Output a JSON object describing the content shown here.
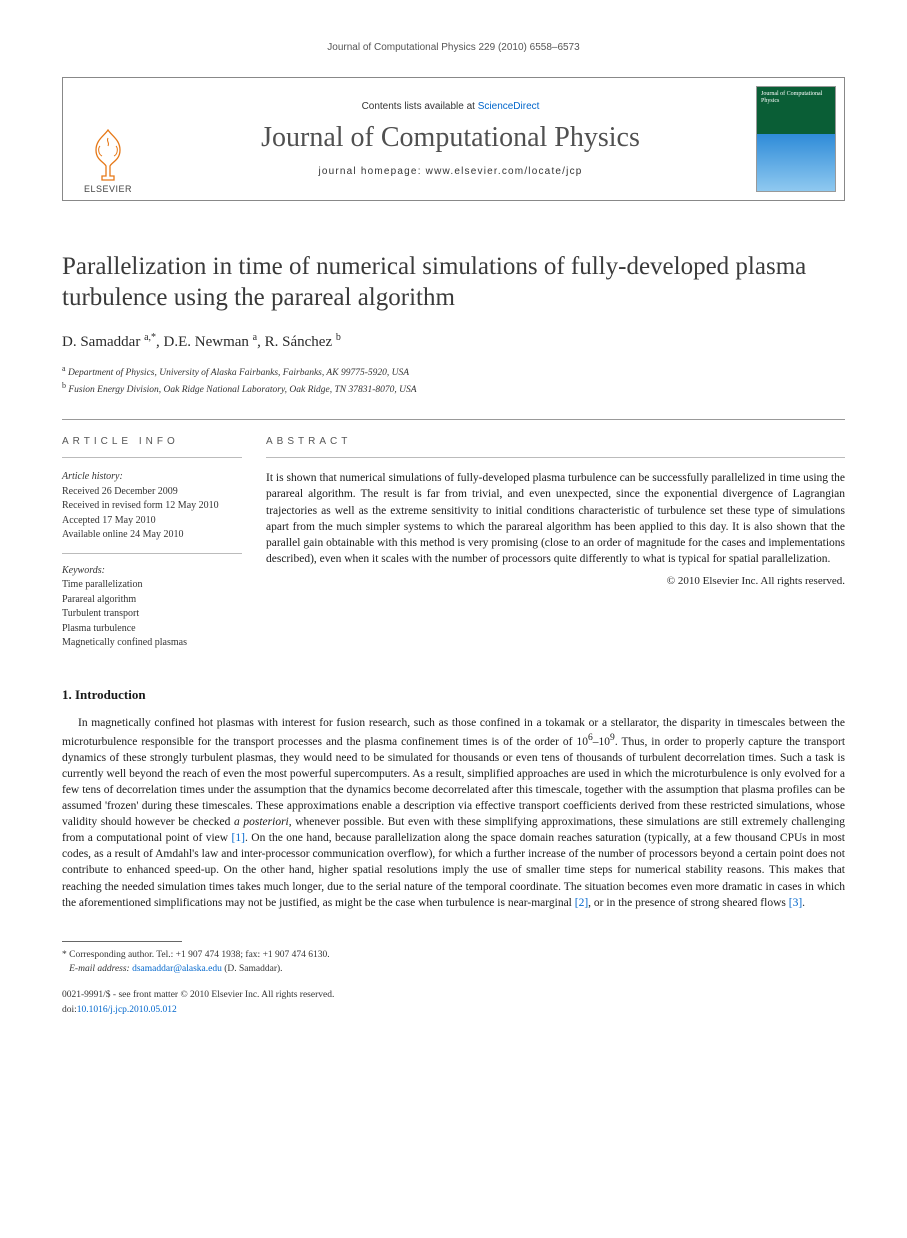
{
  "running_header": "Journal of Computational Physics 229 (2010) 6558–6573",
  "masthead": {
    "elsevier_label": "ELSEVIER",
    "contents_prefix": "Contents lists available at ",
    "contents_link": "ScienceDirect",
    "journal_name": "Journal of Computational Physics",
    "homepage_prefix": "journal homepage: ",
    "homepage_url": "www.elsevier.com/locate/jcp",
    "cover_title": "Journal of Computational Physics"
  },
  "article": {
    "title": "Parallelization in time of numerical simulations of fully-developed plasma turbulence using the parareal algorithm",
    "authors_html": "D. Samaddar <sup>a,*</sup>, D.E. Newman <sup>a</sup>, R. Sánchez <sup>b</sup>",
    "affiliations": [
      {
        "sup": "a",
        "text": "Department of Physics, University of Alaska Fairbanks, Fairbanks, AK 99775-5920, USA"
      },
      {
        "sup": "b",
        "text": "Fusion Energy Division, Oak Ridge National Laboratory, Oak Ridge, TN 37831-8070, USA"
      }
    ]
  },
  "info": {
    "label": "ARTICLE INFO",
    "history_head": "Article history:",
    "history": [
      "Received 26 December 2009",
      "Received in revised form 12 May 2010",
      "Accepted 17 May 2010",
      "Available online 24 May 2010"
    ],
    "keywords_head": "Keywords:",
    "keywords": [
      "Time parallelization",
      "Parareal algorithm",
      "Turbulent transport",
      "Plasma turbulence",
      "Magnetically confined plasmas"
    ]
  },
  "abstract": {
    "label": "ABSTRACT",
    "text": "It is shown that numerical simulations of fully-developed plasma turbulence can be successfully parallelized in time using the parareal algorithm. The result is far from trivial, and even unexpected, since the exponential divergence of Lagrangian trajectories as well as the extreme sensitivity to initial conditions characteristic of turbulence set these type of simulations apart from the much simpler systems to which the parareal algorithm has been applied to this day. It is also shown that the parallel gain obtainable with this method is very promising (close to an order of magnitude for the cases and implementations described), even when it scales with the number of processors quite differently to what is typical for spatial parallelization.",
    "copyright": "© 2010 Elsevier Inc. All rights reserved."
  },
  "body": {
    "section_title": "1. Introduction",
    "para1_a": "In magnetically confined hot plasmas with interest for fusion research, such as those confined in a tokamak or a stellarator, the disparity in timescales between the microturbulence responsible for the transport processes and the plasma confinement times is of the order of 10",
    "para1_exp1": "6",
    "para1_b": "–10",
    "para1_exp2": "9",
    "para1_c": ". Thus, in order to properly capture the transport dynamics of these strongly turbulent plasmas, they would need to be simulated for thousands or even tens of thousands of turbulent decorrelation times. Such a task is currently well beyond the reach of even the most powerful supercomputers. As a result, simplified approaches are used in which the microturbulence is only evolved for a few tens of decorrelation times under the assumption that the dynamics become decorrelated after this timescale, together with the assumption that plasma profiles can be assumed 'frozen' during these timescales. These approximations enable a description via effective transport coefficients derived from these restricted simulations, whose validity should however be checked ",
    "para1_italic": "a posteriori",
    "para1_d": ", whenever possible. But even with these simplifying approximations, these simulations are still extremely challenging from a computational point of view ",
    "ref1": "[1]",
    "para1_e": ". On the one hand, because parallelization along the space domain reaches saturation (typically, at a few thousand CPUs in most codes, as a result of Amdahl's law and inter-processor communication overflow), for which a further increase of the number of processors beyond a certain point does not contribute to enhanced speed-up. On the other hand, higher spatial resolutions imply the use of smaller time steps for numerical stability reasons. This makes that reaching the needed simulation times takes much longer, due to the serial nature of the temporal coordinate. The situation becomes even more dramatic in cases in which the aforementioned simplifications may not be justified, as might be the case when turbulence is near-marginal ",
    "ref2": "[2]",
    "para1_f": ", or in the presence of strong sheared flows ",
    "ref3": "[3]",
    "para1_g": "."
  },
  "footnotes": {
    "corresponding": "* Corresponding author. Tel.: +1 907 474 1938; fax: +1 907 474 6130.",
    "email_label": "E-mail address: ",
    "email": "dsamaddar@alaska.edu",
    "email_suffix": " (D. Samaddar)."
  },
  "footer": {
    "issn_line": "0021-9991/$ - see front matter © 2010 Elsevier Inc. All rights reserved.",
    "doi_prefix": "doi:",
    "doi": "10.1016/j.jcp.2010.05.012"
  }
}
